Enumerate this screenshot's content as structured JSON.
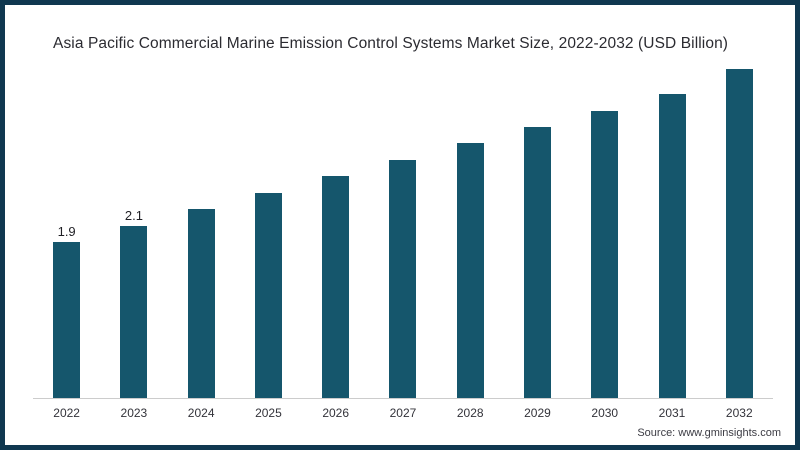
{
  "chart_data": {
    "type": "bar",
    "title": "Asia Pacific Commercial Marine Emission Control Systems Market Size, 2022-2032 (USD Billion)",
    "categories": [
      "2022",
      "2023",
      "2024",
      "2025",
      "2026",
      "2027",
      "2028",
      "2029",
      "2030",
      "2031",
      "2032"
    ],
    "values": [
      1.9,
      2.1,
      2.3,
      2.5,
      2.7,
      2.9,
      3.1,
      3.3,
      3.5,
      3.7,
      4.0
    ],
    "data_labels": {
      "2022": "1.9",
      "2023": "2.1"
    },
    "xlabel": "",
    "ylabel": "",
    "ylim": [
      0,
      4.2
    ],
    "grid": "off",
    "legend": "none",
    "bar_color": "#15566c",
    "axis_line_color": "#cccccc"
  },
  "frame": {
    "border_color": "#103850",
    "background": "#ffffff"
  },
  "footer": {
    "source": "Source: www.gminsights.com"
  }
}
